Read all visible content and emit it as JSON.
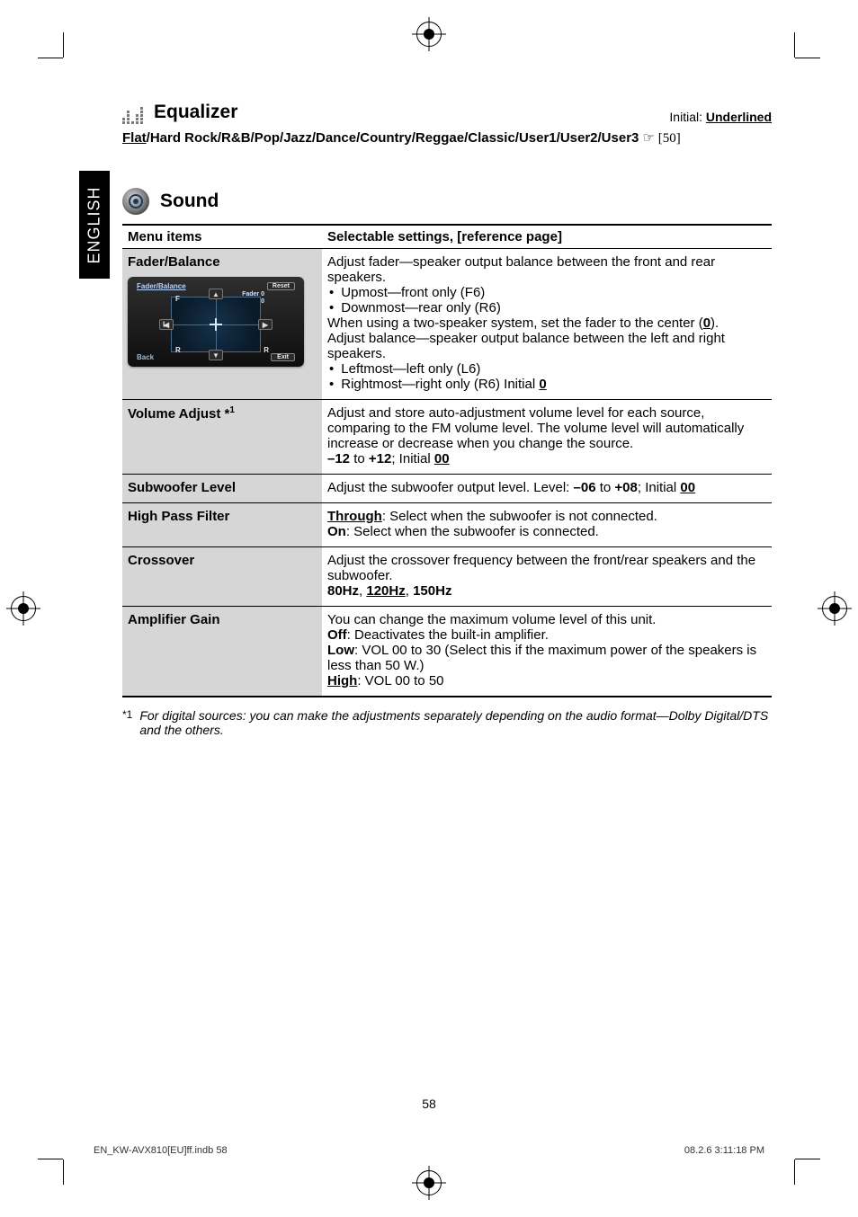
{
  "side_tab": "ENGLISH",
  "initial_note_prefix": "Initial: ",
  "initial_note_value": "Underlined",
  "equalizer": {
    "title": "Equalizer",
    "flat": "Flat",
    "rest": "/Hard Rock/R&B/Pop/Jazz/Dance/Country/Reggae/Classic/User1/User2/User3 ",
    "ref": "☞ [50]"
  },
  "sound": {
    "title": "Sound",
    "col1": "Menu items",
    "col2": "Selectable settings, [reference page]",
    "rows": {
      "fader": {
        "label": "Fader/Balance",
        "l1": "Adjust fader—speaker output balance between the front and rear speakers.",
        "b1": "Upmost—front only (F6)",
        "b2": "Downmost—rear only (R6)",
        "l2a": "When using a two-speaker system, set the fader to the center (",
        "l2b": ").",
        "zero": "0",
        "l3": "Adjust balance—speaker output balance between the left and right speakers.",
        "b3": "Leftmost—left only (L6)",
        "b4a": "Rightmost—right only (R6) Initial ",
        "b4b": "0",
        "graphic": {
          "title": "Fader/Balance",
          "reset": "Reset",
          "back": "Back",
          "exit": "Exit",
          "lab1": "Fader        0",
          "lab2": "Balance    0"
        }
      },
      "vol": {
        "label_a": "Volume Adjust ",
        "label_b": "*",
        "label_c": "1",
        "l1": "Adjust and store auto-adjustment volume level for each source, comparing to the FM volume level. The volume level will automatically increase or decrease when you change the source.",
        "l2a": "–12",
        "l2b": " to ",
        "l2c": "+12",
        "l2d": "; Initial ",
        "l2e": "00"
      },
      "sub": {
        "label": "Subwoofer Level",
        "l1a": "Adjust the subwoofer output level. Level: ",
        "l1b": "–06",
        "l1c": " to ",
        "l1d": "+08",
        "l1e": "; Initial ",
        "l1f": "00"
      },
      "hpf": {
        "label": "High Pass Filter",
        "l1a": "Through",
        "l1b": ": Select when the subwoofer is not connected.",
        "l2a": "On",
        "l2b": ": Select when the subwoofer is connected."
      },
      "cross": {
        "label": "Crossover",
        "l1": "Adjust the crossover frequency between the front/rear speakers and the subwoofer.",
        "l2a": "80Hz",
        "l2b": ", ",
        "l2c": "120Hz",
        "l2d": ", ",
        "l2e": "150Hz"
      },
      "amp": {
        "label": "Amplifier Gain",
        "l1": "You can change the maximum volume level of this unit.",
        "l2a": "Off",
        "l2b": ": Deactivates the built-in amplifier.",
        "l3a": "Low",
        "l3b": ": VOL 00 to 30 (Select this if the maximum power of the speakers is less than 50 W.)",
        "l4a": "High",
        "l4b": ": VOL 00 to 50"
      }
    }
  },
  "footnote": {
    "mark": "*1",
    "text": "For digital sources: you can make the adjustments separately depending on the audio format—Dolby Digital/DTS and the others."
  },
  "page_number": "58",
  "footer_left": "EN_KW-AVX810[EU]ff.indb   58",
  "footer_right": "08.2.6   3:11:18 PM"
}
